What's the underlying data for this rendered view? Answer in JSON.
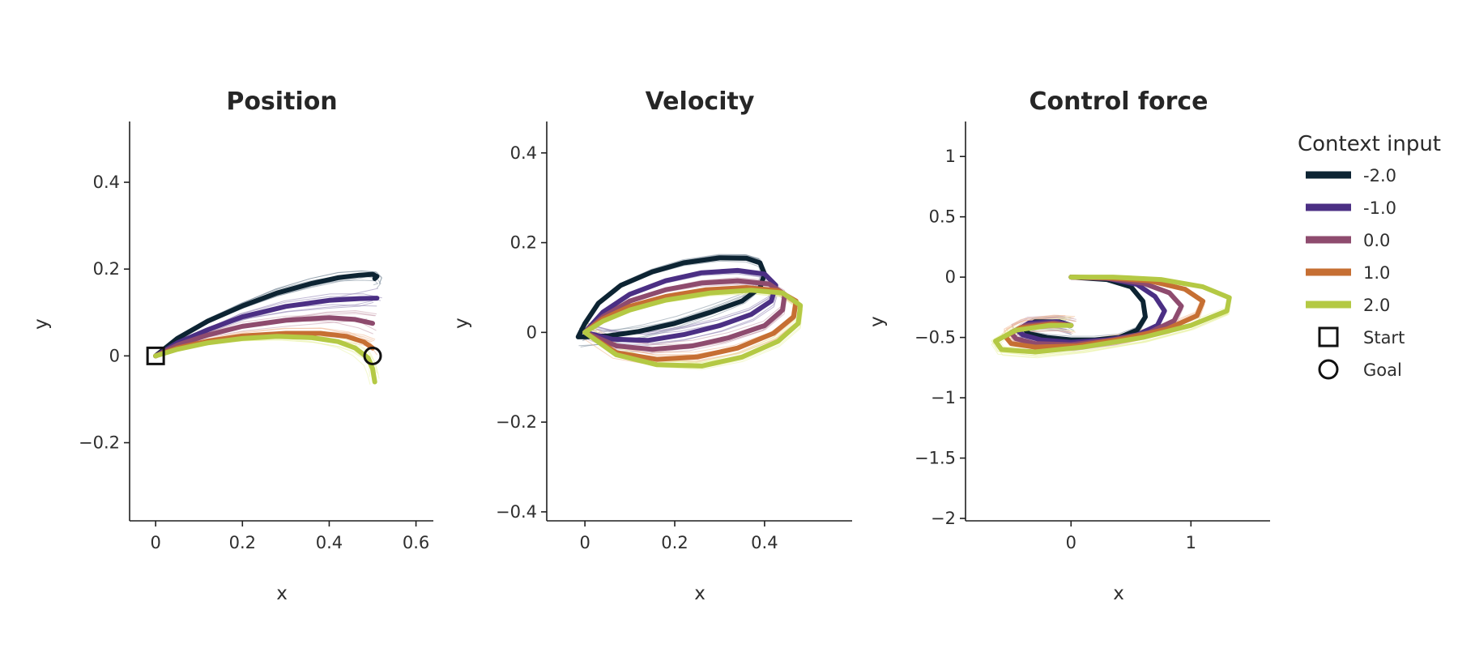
{
  "chart_data": [
    {
      "type": "line",
      "title": "Position",
      "xlabel": "x",
      "ylabel": "y",
      "xlim": [
        -0.06,
        0.64
      ],
      "ylim": [
        -0.38,
        0.54
      ],
      "xticks": [
        0,
        0.2,
        0.4,
        0.6
      ],
      "xtick_labels": [
        "0",
        "0.2",
        "0.4",
        "0.6"
      ],
      "yticks": [
        -0.2,
        0,
        0.2,
        0.4
      ],
      "ytick_labels": [
        "−0.2",
        "0",
        "0.2",
        "0.4"
      ],
      "grid": false,
      "series": [
        {
          "name": "-2.0",
          "x": [
            0,
            0.05,
            0.12,
            0.2,
            0.28,
            0.36,
            0.42,
            0.47,
            0.5,
            0.51,
            0.505
          ],
          "y": [
            0,
            0.04,
            0.08,
            0.115,
            0.145,
            0.167,
            0.18,
            0.186,
            0.188,
            0.183,
            0.178
          ]
        },
        {
          "name": "-1.0",
          "x": [
            0,
            0.05,
            0.12,
            0.2,
            0.3,
            0.4,
            0.47,
            0.51
          ],
          "y": [
            0,
            0.03,
            0.06,
            0.09,
            0.114,
            0.128,
            0.132,
            0.133
          ]
        },
        {
          "name": "0.0",
          "x": [
            0,
            0.05,
            0.12,
            0.2,
            0.3,
            0.4,
            0.46,
            0.5
          ],
          "y": [
            0,
            0.025,
            0.048,
            0.068,
            0.082,
            0.088,
            0.084,
            0.075
          ]
        },
        {
          "name": "1.0",
          "x": [
            0,
            0.05,
            0.12,
            0.2,
            0.3,
            0.38,
            0.44,
            0.48,
            0.5
          ],
          "y": [
            0,
            0.018,
            0.034,
            0.046,
            0.052,
            0.052,
            0.045,
            0.032,
            0.018
          ]
        },
        {
          "name": "2.0",
          "x": [
            0,
            0.05,
            0.12,
            0.2,
            0.28,
            0.36,
            0.42,
            0.46,
            0.49,
            0.5,
            0.505
          ],
          "y": [
            0,
            0.015,
            0.03,
            0.04,
            0.045,
            0.042,
            0.033,
            0.018,
            -0.005,
            -0.03,
            -0.06
          ]
        }
      ],
      "markers": [
        {
          "label": "Start",
          "shape": "square",
          "x": 0,
          "y": 0
        },
        {
          "label": "Goal",
          "shape": "circle",
          "x": 0.5,
          "y": 0
        }
      ]
    },
    {
      "type": "line",
      "title": "Velocity",
      "xlabel": "x",
      "ylabel": "y",
      "xlim": [
        -0.085,
        0.595
      ],
      "ylim": [
        -0.42,
        0.47
      ],
      "xticks": [
        0,
        0.2,
        0.4
      ],
      "xtick_labels": [
        "0",
        "0.2",
        "0.4"
      ],
      "yticks": [
        -0.4,
        -0.2,
        0,
        0.2,
        0.4
      ],
      "ytick_labels": [
        "−0.4",
        "−0.2",
        "0",
        "0.2",
        "0.4"
      ],
      "grid": false,
      "series": [
        {
          "name": "-2.0",
          "x": [
            -0.015,
            0.0,
            0.03,
            0.08,
            0.15,
            0.22,
            0.3,
            0.36,
            0.39,
            0.4,
            0.39,
            0.35,
            0.28,
            0.2,
            0.12,
            0.05,
            0.0,
            -0.015
          ],
          "y": [
            -0.01,
            0.02,
            0.065,
            0.105,
            0.135,
            0.155,
            0.166,
            0.165,
            0.155,
            0.13,
            0.1,
            0.07,
            0.045,
            0.02,
            0.002,
            -0.008,
            -0.01,
            -0.01
          ]
        },
        {
          "name": "-1.0",
          "x": [
            0,
            0.04,
            0.1,
            0.18,
            0.26,
            0.34,
            0.4,
            0.425,
            0.415,
            0.37,
            0.3,
            0.22,
            0.14,
            0.06,
            0.0
          ],
          "y": [
            0,
            0.045,
            0.085,
            0.115,
            0.133,
            0.138,
            0.13,
            0.105,
            0.07,
            0.04,
            0.015,
            -0.005,
            -0.018,
            -0.015,
            0
          ]
        },
        {
          "name": "0.0",
          "x": [
            0,
            0.04,
            0.1,
            0.18,
            0.26,
            0.34,
            0.41,
            0.445,
            0.44,
            0.4,
            0.32,
            0.24,
            0.15,
            0.07,
            0.0
          ],
          "y": [
            0,
            0.035,
            0.07,
            0.095,
            0.11,
            0.115,
            0.108,
            0.085,
            0.05,
            0.015,
            -0.012,
            -0.03,
            -0.038,
            -0.03,
            0
          ]
        },
        {
          "name": "1.0",
          "x": [
            0,
            0.04,
            0.1,
            0.18,
            0.27,
            0.36,
            0.43,
            0.47,
            0.465,
            0.42,
            0.34,
            0.25,
            0.16,
            0.07,
            0.0
          ],
          "y": [
            0,
            0.03,
            0.058,
            0.08,
            0.095,
            0.1,
            0.093,
            0.07,
            0.035,
            -0.002,
            -0.035,
            -0.055,
            -0.06,
            -0.045,
            0
          ]
        },
        {
          "name": "2.0",
          "x": [
            0,
            0.04,
            0.1,
            0.18,
            0.28,
            0.37,
            0.44,
            0.48,
            0.475,
            0.43,
            0.35,
            0.26,
            0.16,
            0.07,
            0.0
          ],
          "y": [
            0,
            0.025,
            0.05,
            0.072,
            0.088,
            0.094,
            0.088,
            0.06,
            0.02,
            -0.02,
            -0.055,
            -0.075,
            -0.072,
            -0.05,
            0
          ]
        }
      ]
    },
    {
      "type": "line",
      "title": "Control force",
      "xlabel": "x",
      "ylabel": "y",
      "xlim": [
        -0.88,
        1.66
      ],
      "ylim": [
        -2.02,
        1.29
      ],
      "xticks": [
        0,
        1
      ],
      "xtick_labels": [
        "0",
        "1"
      ],
      "yticks": [
        -2,
        -1.5,
        -1,
        -0.5,
        0,
        0.5,
        1
      ],
      "ytick_labels": [
        "−2",
        "−1.5",
        "−1",
        "−0.5",
        "0",
        "0.5",
        "1"
      ],
      "grid": false,
      "series": [
        {
          "name": "-2.0",
          "x": [
            0,
            0.3,
            0.5,
            0.6,
            0.62,
            0.55,
            0.4,
            0.2,
            0.0,
            -0.2,
            -0.35,
            -0.4,
            -0.3,
            -0.1,
            0.0
          ],
          "y": [
            0,
            -0.02,
            -0.08,
            -0.2,
            -0.33,
            -0.44,
            -0.5,
            -0.52,
            -0.52,
            -0.5,
            -0.47,
            -0.42,
            -0.37,
            -0.37,
            -0.4
          ]
        },
        {
          "name": "-1.0",
          "x": [
            0,
            0.3,
            0.55,
            0.7,
            0.78,
            0.72,
            0.55,
            0.3,
            0.0,
            -0.25,
            -0.4,
            -0.45,
            -0.35,
            -0.12,
            0.0
          ],
          "y": [
            0,
            -0.01,
            -0.06,
            -0.16,
            -0.28,
            -0.4,
            -0.48,
            -0.52,
            -0.54,
            -0.52,
            -0.48,
            -0.44,
            -0.38,
            -0.37,
            -0.4
          ]
        },
        {
          "name": "0.0",
          "x": [
            0,
            0.3,
            0.6,
            0.82,
            0.92,
            0.86,
            0.65,
            0.35,
            0.0,
            -0.3,
            -0.46,
            -0.5,
            -0.38,
            -0.14,
            0.0
          ],
          "y": [
            0,
            -0.01,
            -0.05,
            -0.13,
            -0.24,
            -0.36,
            -0.46,
            -0.52,
            -0.56,
            -0.55,
            -0.51,
            -0.46,
            -0.4,
            -0.38,
            -0.4
          ]
        },
        {
          "name": "1.0",
          "x": [
            0,
            0.3,
            0.65,
            0.95,
            1.1,
            1.05,
            0.8,
            0.45,
            0.05,
            -0.3,
            -0.5,
            -0.55,
            -0.42,
            -0.16,
            0.0
          ],
          "y": [
            0,
            -0.005,
            -0.03,
            -0.1,
            -0.2,
            -0.32,
            -0.43,
            -0.51,
            -0.57,
            -0.58,
            -0.55,
            -0.49,
            -0.42,
            -0.39,
            -0.4
          ]
        },
        {
          "name": "2.0",
          "x": [
            0,
            0.35,
            0.75,
            1.1,
            1.32,
            1.3,
            1.0,
            0.6,
            0.1,
            -0.3,
            -0.58,
            -0.63,
            -0.46,
            -0.18,
            0.0
          ],
          "y": [
            0,
            0.0,
            -0.02,
            -0.08,
            -0.17,
            -0.28,
            -0.4,
            -0.5,
            -0.58,
            -0.62,
            -0.6,
            -0.53,
            -0.44,
            -0.4,
            -0.4
          ]
        }
      ]
    }
  ],
  "legend": {
    "title": "Context input",
    "placement": "right",
    "entries": [
      {
        "label": "-2.0",
        "color": "#0d2433"
      },
      {
        "label": "-1.0",
        "color": "#4b2f84"
      },
      {
        "label": "0.0",
        "color": "#8e4b6e"
      },
      {
        "label": "1.0",
        "color": "#c66f33"
      },
      {
        "label": "2.0",
        "color": "#b4c944"
      }
    ],
    "marker_entries": [
      {
        "label": "Start",
        "shape": "square"
      },
      {
        "label": "Goal",
        "shape": "circle"
      }
    ]
  },
  "colors": {
    "-2.0": "#0d2433",
    "-1.0": "#4b2f84",
    "0.0": "#8e4b6e",
    "1.0": "#c66f33",
    "2.0": "#b4c944",
    "axis": "#1f1f1f",
    "thin_trials": [
      "#7e8e9c",
      "#8e80b2",
      "#c79aab",
      "#f0b48c",
      "#e9f2a6"
    ]
  }
}
